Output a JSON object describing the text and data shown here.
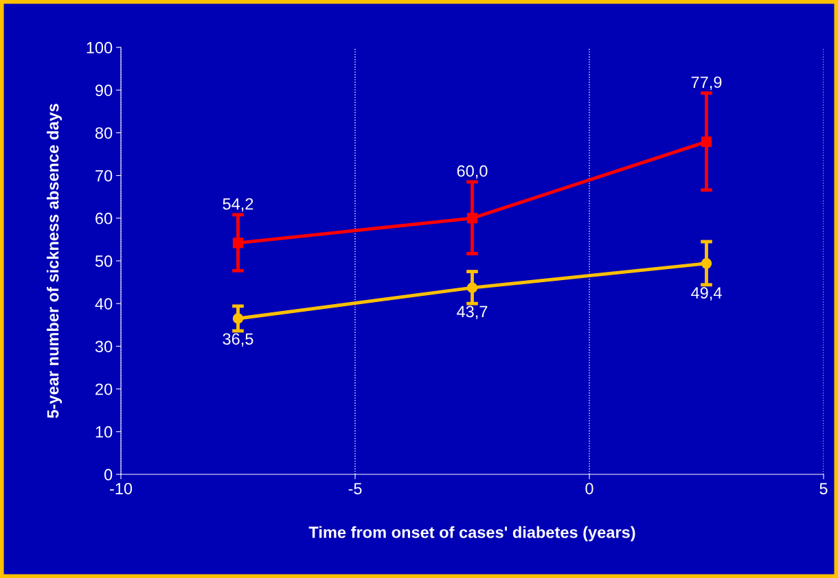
{
  "chart_data": {
    "type": "line",
    "xlabel": "Time from onset of cases' diabetes (years)",
    "ylabel": "5-year number of sickness absence days",
    "x": [
      -7.5,
      -2.5,
      2.5
    ],
    "series": [
      {
        "color": "#ff0000",
        "marker": "square",
        "values": [
          54.2,
          60.0,
          77.9
        ],
        "errors": [
          [
            47.7,
            60.8
          ],
          [
            51.7,
            68.5
          ],
          [
            66.6,
            89.3
          ]
        ],
        "value_labels": [
          "54,2",
          "60,0",
          "77,9"
        ]
      },
      {
        "color": "#ffc000",
        "marker": "circle",
        "values": [
          36.5,
          43.7,
          49.4
        ],
        "errors": [
          [
            33.6,
            39.4
          ],
          [
            40.0,
            47.5
          ],
          [
            44.4,
            54.5
          ]
        ],
        "value_labels": [
          "36,5",
          "43,7",
          "49,4"
        ]
      }
    ],
    "xlim": [
      -10,
      5
    ],
    "xticks": [
      -10,
      -5,
      0,
      5
    ],
    "ylim": [
      0,
      100
    ],
    "yticks": [
      0,
      10,
      20,
      30,
      40,
      50,
      60,
      70,
      80,
      90,
      100
    ],
    "grid": "x",
    "legend": false,
    "line_style": "solid"
  }
}
